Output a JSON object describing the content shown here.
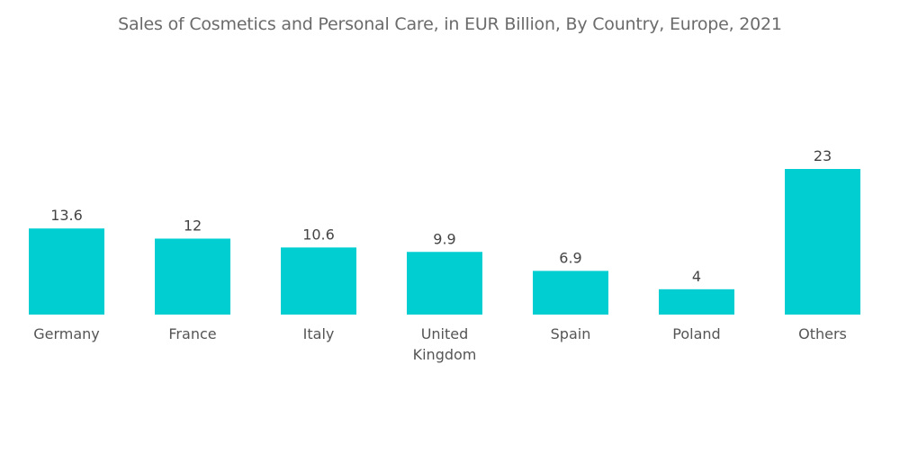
{
  "chart_data": {
    "type": "bar",
    "title": "Sales of Cosmetics and Personal Care, in EUR Billion, By Country, Europe, 2021",
    "categories": [
      [
        "Germany"
      ],
      [
        "France"
      ],
      [
        "Italy"
      ],
      [
        "United",
        "Kingdom"
      ],
      [
        "Spain"
      ],
      [
        "Poland"
      ],
      [
        "Others"
      ]
    ],
    "values": [
      13.6,
      12,
      10.6,
      9.9,
      6.9,
      4,
      23
    ],
    "value_labels": [
      "13.6",
      "12",
      "10.6",
      "9.9",
      "6.9",
      "4",
      "23"
    ],
    "xlabel": "",
    "ylabel": "",
    "ylim": [
      0,
      23
    ],
    "grid": false,
    "legend": "none",
    "bar_color": "#00CED1"
  }
}
